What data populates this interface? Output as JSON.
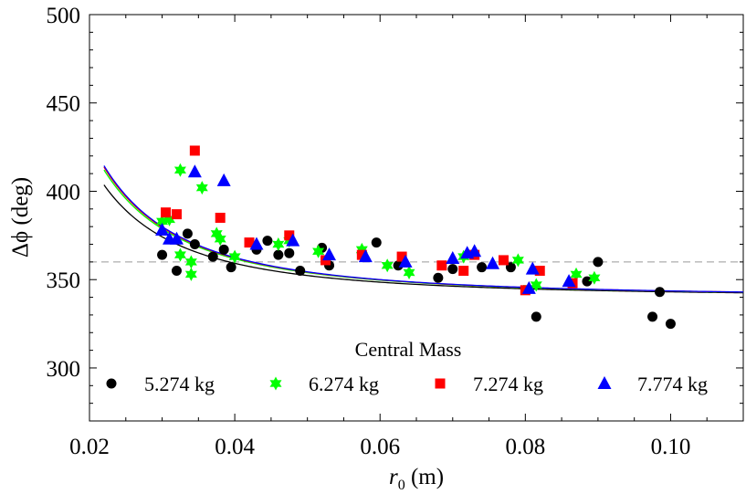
{
  "chart_data": {
    "type": "scatter",
    "title": "",
    "xlabel_var": "r",
    "xlabel_sub": "0",
    "xlabel_unit": " (m)",
    "ylabel": "Δϕ (deg)",
    "xlim": [
      0.02,
      0.11
    ],
    "ylim": [
      270,
      500
    ],
    "xticks": [
      0.02,
      0.04,
      0.06,
      0.08,
      0.1
    ],
    "xtick_labels": [
      "0.02",
      "0.04",
      "0.06",
      "0.08",
      "0.10"
    ],
    "yticks": [
      300,
      350,
      400,
      450,
      500
    ],
    "ytick_labels": [
      "300",
      "350",
      "400",
      "450",
      "500"
    ],
    "grid": false,
    "reference_line_y": 360,
    "legend": {
      "title": "Central Mass",
      "placement": "bottom",
      "entries": [
        "5.274 kg",
        "6.274 kg",
        "7.274 kg",
        "7.774 kg"
      ]
    },
    "series": [
      {
        "name": "5.274 kg",
        "marker": "circle",
        "color": "#000000",
        "points": [
          [
            0.03,
            364
          ],
          [
            0.032,
            355
          ],
          [
            0.0335,
            376
          ],
          [
            0.0345,
            370
          ],
          [
            0.037,
            363
          ],
          [
            0.0385,
            367
          ],
          [
            0.0395,
            357
          ],
          [
            0.043,
            367
          ],
          [
            0.0445,
            372
          ],
          [
            0.046,
            364
          ],
          [
            0.0475,
            365
          ],
          [
            0.049,
            355
          ],
          [
            0.052,
            368
          ],
          [
            0.053,
            358
          ],
          [
            0.0575,
            365
          ],
          [
            0.0595,
            371
          ],
          [
            0.0625,
            358
          ],
          [
            0.068,
            351
          ],
          [
            0.07,
            356
          ],
          [
            0.074,
            357
          ],
          [
            0.078,
            357
          ],
          [
            0.0815,
            329
          ],
          [
            0.0885,
            349
          ],
          [
            0.09,
            360
          ],
          [
            0.0975,
            329
          ],
          [
            0.0985,
            343
          ],
          [
            0.1,
            325
          ]
        ],
        "curve_C": 3.42
      },
      {
        "name": "6.274 kg",
        "marker": "star",
        "color": "#00ff00",
        "points": [
          [
            0.03,
            383
          ],
          [
            0.031,
            384
          ],
          [
            0.0325,
            412
          ],
          [
            0.0325,
            364
          ],
          [
            0.034,
            360
          ],
          [
            0.034,
            353
          ],
          [
            0.0355,
            402
          ],
          [
            0.0375,
            376
          ],
          [
            0.038,
            373
          ],
          [
            0.04,
            363
          ],
          [
            0.046,
            370
          ],
          [
            0.0475,
            372
          ],
          [
            0.0515,
            366
          ],
          [
            0.0575,
            367
          ],
          [
            0.061,
            358
          ],
          [
            0.064,
            354
          ],
          [
            0.0715,
            363
          ],
          [
            0.079,
            361
          ],
          [
            0.0805,
            345
          ],
          [
            0.0815,
            347
          ],
          [
            0.087,
            353
          ],
          [
            0.0895,
            351
          ]
        ],
        "curve_C": 3.875
      },
      {
        "name": "7.274 kg",
        "marker": "square",
        "color": "#ff0000",
        "points": [
          [
            0.0305,
            388
          ],
          [
            0.032,
            387
          ],
          [
            0.0345,
            423
          ],
          [
            0.038,
            385
          ],
          [
            0.042,
            371
          ],
          [
            0.0475,
            375
          ],
          [
            0.0525,
            361
          ],
          [
            0.0575,
            364
          ],
          [
            0.063,
            363
          ],
          [
            0.0685,
            358
          ],
          [
            0.0715,
            355
          ],
          [
            0.073,
            364
          ],
          [
            0.077,
            361
          ],
          [
            0.08,
            344
          ],
          [
            0.082,
            355
          ],
          [
            0.0865,
            348
          ]
        ],
        "curve_C": 3.96
      },
      {
        "name": "7.774 kg",
        "marker": "triangle",
        "color": "#0000ff",
        "points": [
          [
            0.03,
            378
          ],
          [
            0.031,
            373
          ],
          [
            0.032,
            373
          ],
          [
            0.0345,
            411
          ],
          [
            0.0385,
            406
          ],
          [
            0.043,
            370
          ],
          [
            0.048,
            372
          ],
          [
            0.053,
            364
          ],
          [
            0.058,
            363
          ],
          [
            0.0635,
            360
          ],
          [
            0.07,
            362
          ],
          [
            0.072,
            365
          ],
          [
            0.073,
            366
          ],
          [
            0.0755,
            359
          ],
          [
            0.0805,
            345
          ],
          [
            0.081,
            356
          ],
          [
            0.086,
            349
          ]
        ],
        "curve_C": 4.005
      }
    ]
  }
}
